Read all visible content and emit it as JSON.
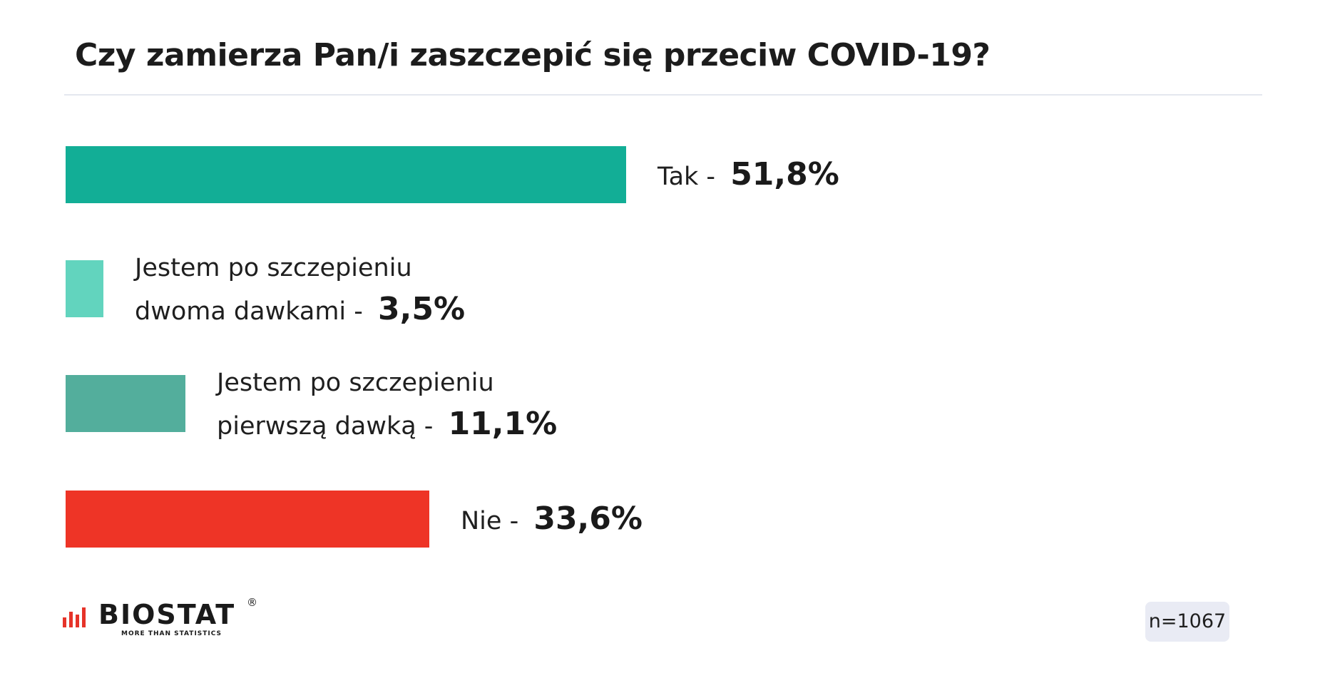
{
  "title": "Czy zamierza Pan/i zaszczepić się przeciw COVID-19?",
  "sample": "n=1067",
  "logo": {
    "name": "BIOSTAT",
    "registered": "®",
    "tagline": "MORE THAN STATISTICS",
    "colors": {
      "mark": "#e63329",
      "text": "#1a1a1a"
    }
  },
  "chart_data": {
    "type": "bar",
    "orientation": "horizontal",
    "title": "Czy zamierza Pan/i zaszczepić się przeciw COVID-19?",
    "unit": "%",
    "xlim": [
      0,
      100
    ],
    "grid": false,
    "categories": [
      "Tak",
      "Jestem po szczepieniu dwoma dawkami",
      "Jestem po szczepieniu pierwszą dawką",
      "Nie"
    ],
    "values": [
      51.8,
      3.5,
      11.1,
      33.6
    ],
    "bars": [
      {
        "label_lines": [
          "Tak - "
        ],
        "value_text": "51,8%",
        "value": 51.8,
        "color": "#12ae96"
      },
      {
        "label_lines": [
          "Jestem po szczepieniu",
          "dwoma dawkami - "
        ],
        "value_text": "3,5%",
        "value": 3.5,
        "color": "#62d4be"
      },
      {
        "label_lines": [
          "Jestem po szczepieniu",
          "pierwszą dawką - "
        ],
        "value_text": "11,1%",
        "value": 11.1,
        "color": "#53ae9c"
      },
      {
        "label_lines": [
          "Nie - "
        ],
        "value_text": "33,6%",
        "value": 33.6,
        "color": "#ee3426"
      }
    ]
  }
}
